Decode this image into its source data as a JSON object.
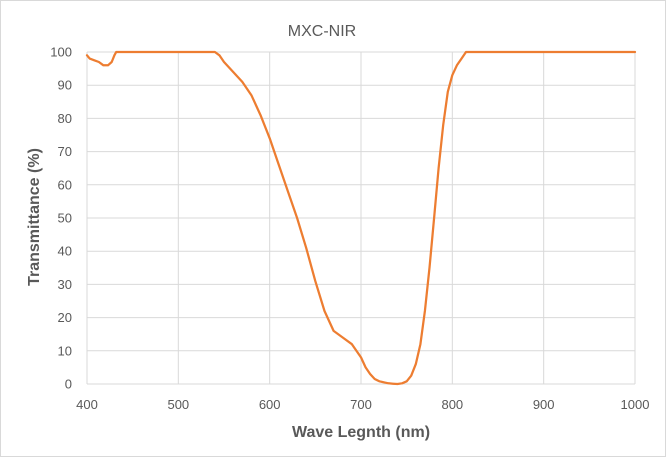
{
  "chart_data": {
    "type": "line",
    "title": "MXC-NIR",
    "xlabel": "Wave Legnth (nm)",
    "ylabel": "Transmittance (%)",
    "xlim": [
      400,
      1000
    ],
    "ylim": [
      0,
      100
    ],
    "x_ticks": [
      "400",
      "500",
      "600",
      "700",
      "800",
      "900",
      "1000"
    ],
    "y_ticks": [
      "0",
      "10",
      "20",
      "30",
      "40",
      "50",
      "60",
      "70",
      "80",
      "90",
      "100"
    ],
    "grid": true,
    "legend": "none",
    "line_color": "#ED7D31",
    "series": [
      {
        "x": [
          400,
          403,
          408,
          413,
          418,
          423,
          427,
          430,
          432,
          434,
          440,
          450,
          500,
          540,
          545,
          550,
          560,
          570,
          580,
          590,
          600,
          610,
          620,
          630,
          640,
          650,
          660,
          670,
          680,
          690,
          695,
          700,
          705,
          710,
          715,
          720,
          725,
          730,
          735,
          740,
          745,
          750,
          755,
          760,
          765,
          770,
          775,
          780,
          785,
          790,
          795,
          800,
          805,
          810,
          815,
          820,
          850,
          900,
          950,
          1000
        ],
        "y": [
          99,
          98,
          97.5,
          97,
          96,
          96,
          97,
          99,
          100,
          100,
          100,
          100,
          100,
          100,
          99,
          97,
          94,
          91,
          87,
          81,
          74,
          66,
          58,
          50,
          41,
          31,
          22,
          16,
          14,
          12,
          10,
          8,
          5,
          3,
          1.5,
          0.8,
          0.5,
          0.2,
          0.1,
          0,
          0.2,
          0.8,
          2.5,
          6,
          12,
          22,
          35,
          50,
          65,
          78,
          88,
          93,
          96,
          98,
          100,
          100,
          100,
          100,
          100,
          100
        ]
      }
    ]
  }
}
